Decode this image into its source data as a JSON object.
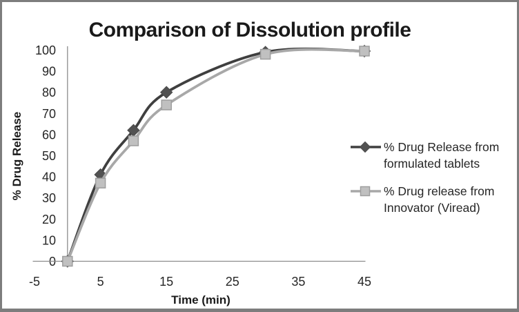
{
  "chart_data": {
    "type": "line",
    "title": "Comparison of Dissolution profile",
    "xlabel": "Time (min)",
    "ylabel": "% Drug Release",
    "x": [
      0,
      5,
      10,
      15,
      30,
      45
    ],
    "series": [
      {
        "name": "% Drug Release from formulated tablets",
        "values": [
          0,
          41,
          62,
          80,
          99,
          99.5
        ],
        "line_color": "#3f3f3f",
        "marker": "diamond",
        "marker_color": "#525252",
        "marker_edge": "#4a4a4a"
      },
      {
        "name": "% Drug release from Innovator (Viread)",
        "values": [
          0,
          37,
          57,
          74,
          98,
          99.5
        ],
        "line_color": "#a8a8a8",
        "marker": "square",
        "marker_color": "#c0c0c0",
        "marker_edge": "#9e9e9e"
      }
    ],
    "xlim": [
      -5,
      45
    ],
    "ylim": [
      0,
      100
    ],
    "x_ticks": [
      -5,
      5,
      15,
      25,
      35,
      45
    ],
    "y_ticks": [
      0,
      10,
      20,
      30,
      40,
      50,
      60,
      70,
      80,
      90,
      100
    ],
    "grid": false,
    "smooth": true,
    "legend_position": "right"
  },
  "legend": {
    "entries": [
      {
        "line1": "% Drug Release from",
        "line2": "formulated tablets"
      },
      {
        "line1": "% Drug release from",
        "line2": "Innovator (Viread)"
      }
    ]
  },
  "colors": {
    "axis": "#8c8c8c",
    "text": "#1a1a1a",
    "border": "#7d7d7d",
    "background": "#ffffff"
  }
}
